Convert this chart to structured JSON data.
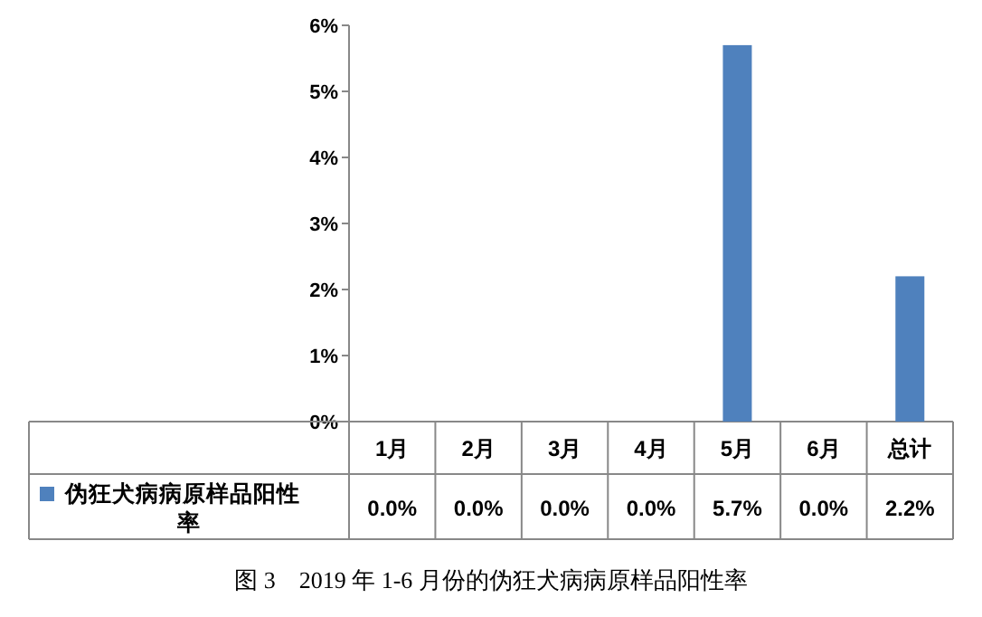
{
  "chart_data": {
    "type": "bar",
    "title": "图 3　2019 年 1-6 月份的伪狂犬病病原样品阳性率",
    "categories": [
      "1月",
      "2月",
      "3月",
      "4月",
      "5月",
      "6月",
      "总计"
    ],
    "series": [
      {
        "name": "伪狂犬病病原样品阳性率",
        "color": "#4f81bd",
        "values": [
          0,
          0,
          0,
          0,
          5.7,
          0,
          2.2
        ],
        "value_labels": [
          "0.0%",
          "0.0%",
          "0.0%",
          "0.0%",
          "5.7%",
          "0.0%",
          "2.2%"
        ]
      }
    ],
    "ylim": [
      0,
      6
    ],
    "yticks": [
      {
        "value": 0,
        "label": "0%"
      },
      {
        "value": 1,
        "label": "1%"
      },
      {
        "value": 2,
        "label": "2%"
      },
      {
        "value": 3,
        "label": "3%"
      },
      {
        "value": 4,
        "label": "4%"
      },
      {
        "value": 5,
        "label": "5%"
      },
      {
        "value": 6,
        "label": "6%"
      }
    ],
    "grid": false,
    "legend": "bottom left"
  }
}
